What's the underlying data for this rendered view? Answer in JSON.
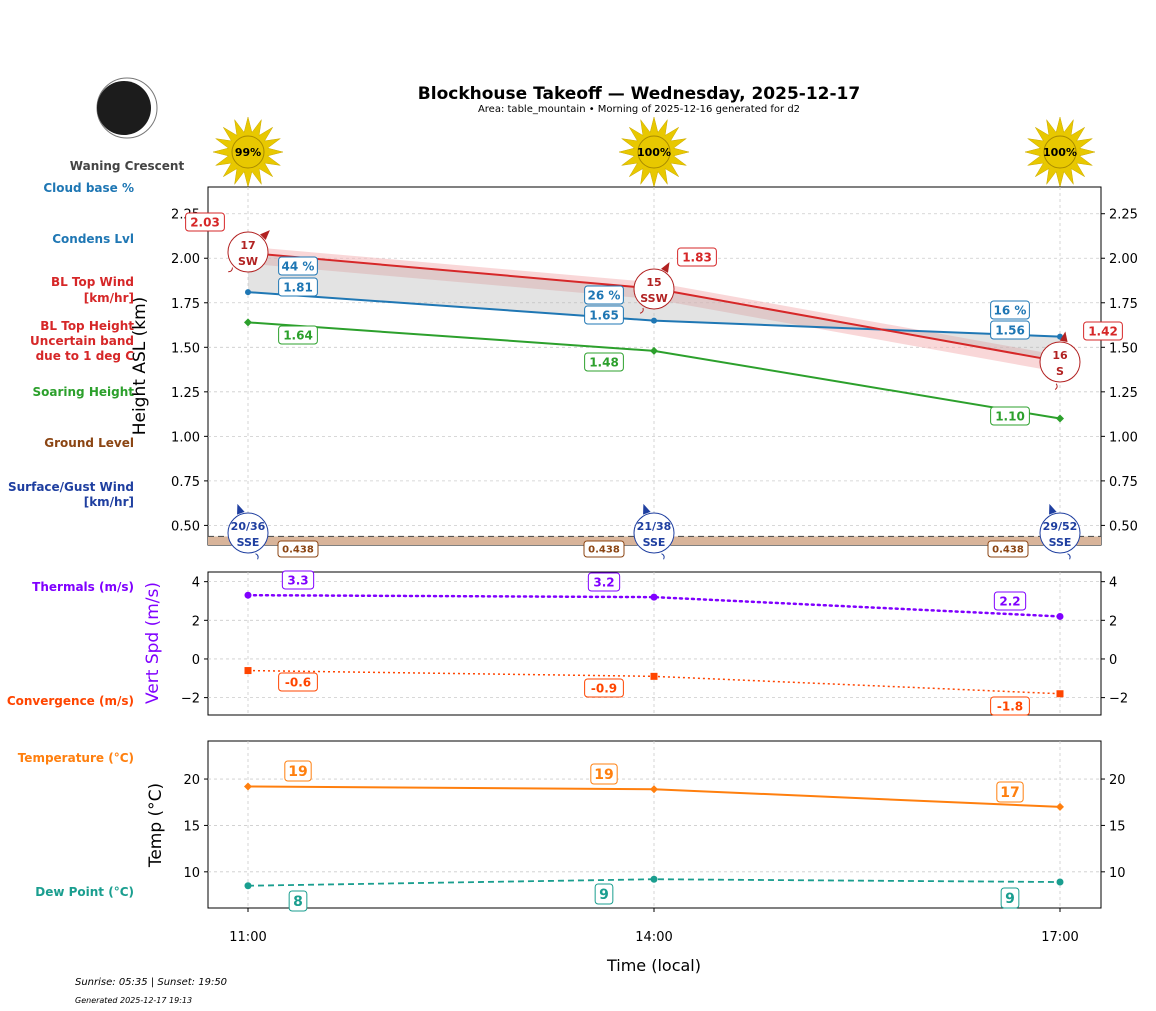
{
  "header": {
    "title": "Blockhouse Takeoff — Wednesday, 2025-12-17",
    "subtitle": "Area: table_mountain • Morning of 2025-12-16 generated for d2",
    "moon_phase": "Waning Crescent",
    "sun_text": "Sunrise: 05:35 | Sunset: 19:50",
    "generated": "Generated 2025-12-17 19:13"
  },
  "colors": {
    "cloudbase": "#1f77b4",
    "bltop": "#d62728",
    "soaring": "#2ca02c",
    "ground": "#8b4513",
    "surface_wind": "#1f3fa0",
    "thermals": "#8000ff",
    "convergence": "#ff4500",
    "temperature": "#ff7f0e",
    "dewpoint": "#1a9e8f",
    "sun": "#e8c800"
  },
  "legend": {
    "cloud_base_pct": "Cloud base %",
    "condens": "Condens Lvl",
    "bl_wind_1": "BL Top Wind",
    "bl_wind_2": "[km/hr]",
    "bl_height_1": "BL Top Height",
    "bl_height_2": "Uncertain band",
    "bl_height_3": "due to 1 deg C",
    "soaring": "Soaring Height",
    "ground": "Ground Level",
    "surface_1": "Surface/Gust Wind",
    "surface_2": "[km/hr]",
    "thermals": "Thermals (m/s)",
    "convergence": "Convergence (m/s)",
    "temperature": "Temperature (°C)",
    "dewpoint": "Dew Point (°C)"
  },
  "chart_data": [
    {
      "type": "line",
      "ylabel": "Height ASL (km)",
      "x": [
        "11:00",
        "14:00",
        "17:00"
      ],
      "ylim": [
        0.39,
        2.4
      ],
      "yticks": [
        "0.50",
        "0.75",
        "1.00",
        "1.25",
        "1.50",
        "1.75",
        "2.00",
        "2.25"
      ],
      "grid": true,
      "series": [
        {
          "name": "BL Top Height",
          "values": [
            2.03,
            1.83,
            1.42
          ],
          "labels": [
            "2.03",
            "1.83",
            "1.42"
          ]
        },
        {
          "name": "Condens Lvl",
          "values": [
            1.81,
            1.65,
            1.56
          ],
          "labels": [
            "1.81",
            "1.65",
            "1.56"
          ]
        },
        {
          "name": "Soaring Height",
          "values": [
            1.64,
            1.48,
            1.1
          ],
          "labels": [
            "1.64",
            "1.48",
            "1.10"
          ]
        },
        {
          "name": "Ground Level",
          "values": [
            0.438,
            0.438,
            0.438
          ],
          "labels": [
            "0.438",
            "0.438",
            "0.438"
          ]
        }
      ],
      "cloud_base_pct": [
        "44 %",
        "26 %",
        "16 %"
      ],
      "sunshine_pct": [
        "99%",
        "100%",
        "100%"
      ],
      "bl_top_wind": [
        {
          "speed": "17",
          "dir": "SW"
        },
        {
          "speed": "15",
          "dir": "SSW"
        },
        {
          "speed": "16",
          "dir": "S"
        }
      ],
      "surface_wind": [
        {
          "speed": "20/36",
          "dir": "SSE"
        },
        {
          "speed": "21/38",
          "dir": "SSE"
        },
        {
          "speed": "29/52",
          "dir": "SSE"
        }
      ]
    },
    {
      "type": "line",
      "ylabel": "Vert Spd (m/s)",
      "x": [
        "11:00",
        "14:00",
        "17:00"
      ],
      "ylim": [
        -2.9,
        4.5
      ],
      "yticks": [
        "−2",
        "0",
        "2",
        "4"
      ],
      "grid": true,
      "series": [
        {
          "name": "Thermals (m/s)",
          "values": [
            3.3,
            3.2,
            2.2
          ],
          "labels": [
            "3.3",
            "3.2",
            "2.2"
          ]
        },
        {
          "name": "Convergence (m/s)",
          "values": [
            -0.6,
            -0.9,
            -1.8
          ],
          "labels": [
            "-0.6",
            "-0.9",
            "-1.8"
          ]
        }
      ]
    },
    {
      "type": "line",
      "ylabel": "Temp (°C)",
      "xlabel": "Time (local)",
      "x": [
        "11:00",
        "14:00",
        "17:00"
      ],
      "ylim": [
        6.1,
        24.1
      ],
      "yticks": [
        "10",
        "15",
        "20"
      ],
      "grid": true,
      "series": [
        {
          "name": "Temperature (°C)",
          "values": [
            19.2,
            18.9,
            17.0
          ],
          "labels": [
            "19",
            "19",
            "17"
          ]
        },
        {
          "name": "Dew Point (°C)",
          "values": [
            8.5,
            9.2,
            8.9
          ],
          "labels": [
            "8",
            "9",
            "9"
          ]
        }
      ]
    }
  ]
}
